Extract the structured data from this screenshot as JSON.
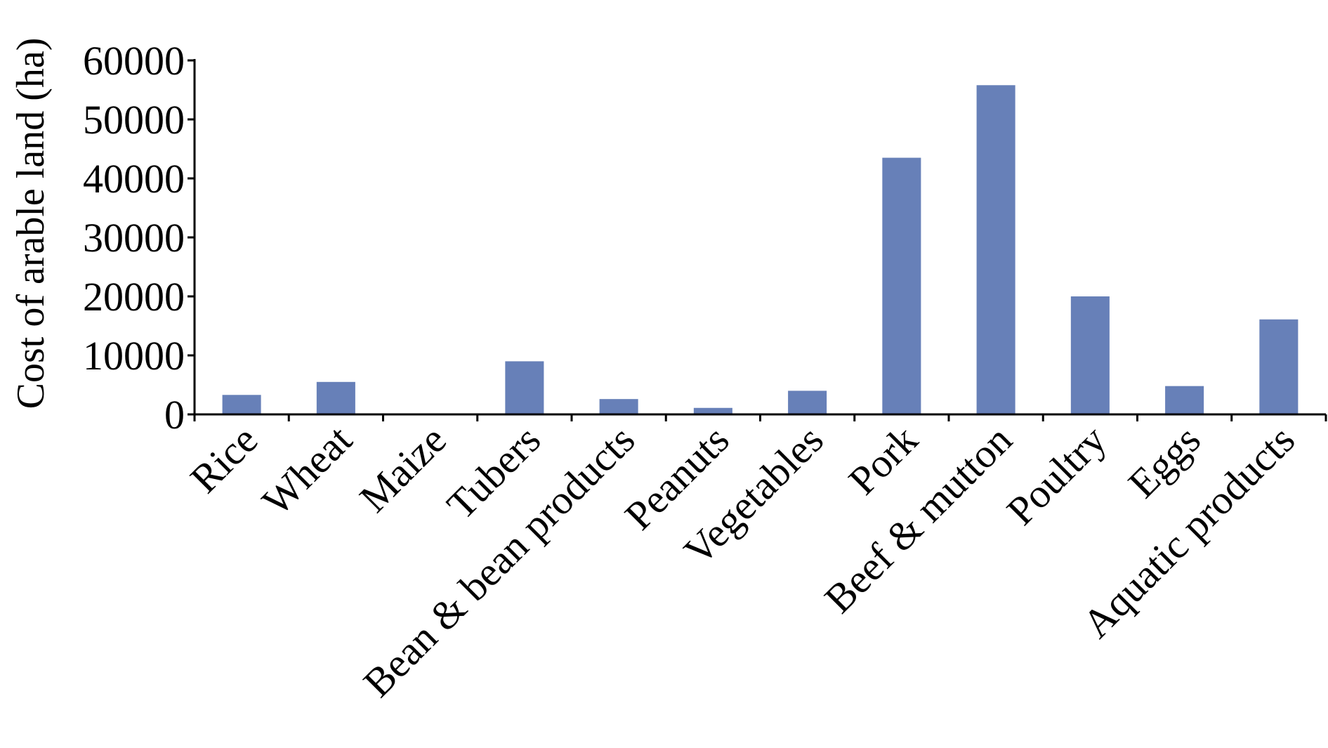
{
  "chart_data": {
    "type": "bar",
    "title": "",
    "xlabel": "",
    "ylabel": "Cost of arable land (ha)",
    "ylim": [
      0,
      60000
    ],
    "yticks": [
      "0",
      "10000",
      "20000",
      "30000",
      "40000",
      "50000",
      "60000"
    ],
    "categories": [
      "Rice",
      "Wheat",
      "Maize",
      "Tubers",
      "Bean & bean products",
      "Peanuts",
      "Vegetables",
      "Pork",
      "Beef & mutton",
      "Poultry",
      "Eggs",
      "Aquatic products"
    ],
    "values": [
      3300,
      5500,
      0,
      9000,
      2600,
      1100,
      4000,
      43500,
      55800,
      20000,
      4800,
      16100
    ],
    "bar_color": "#6780b8",
    "grid": false,
    "legend": "none"
  }
}
